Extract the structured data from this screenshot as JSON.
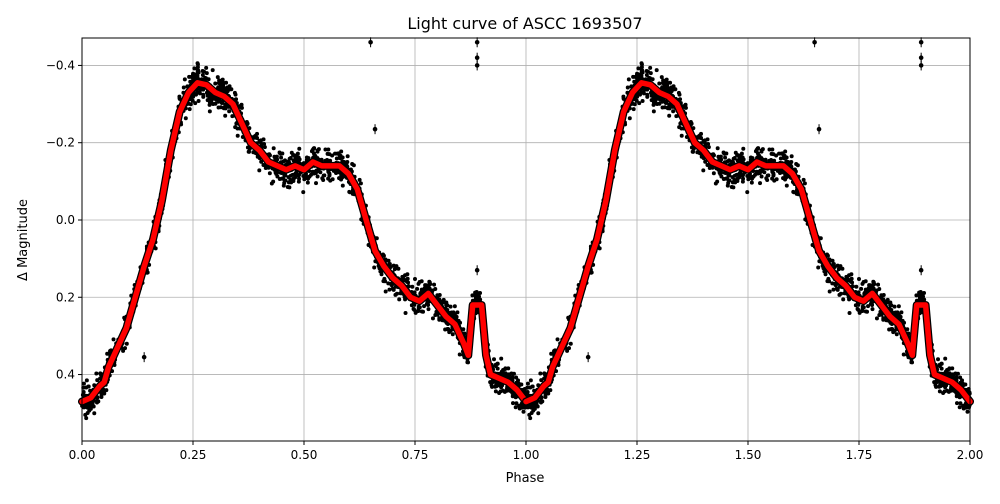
{
  "chart_data": {
    "type": "scatter",
    "title": "Light curve of ASCC 1693507",
    "xlabel": "Phase",
    "ylabel": "Δ Magnitude",
    "xlim": [
      0.0,
      2.0
    ],
    "ylim": [
      0.572,
      -0.471
    ],
    "y_inverted": true,
    "grid": true,
    "legend": null,
    "x_ticks": [
      "0.00",
      "0.25",
      "0.50",
      "0.75",
      "1.00",
      "1.25",
      "1.50",
      "1.75",
      "2.00"
    ],
    "x_tick_values": [
      0.0,
      0.25,
      0.5,
      0.75,
      1.0,
      1.25,
      1.5,
      1.75,
      2.0
    ],
    "y_ticks": [
      "−0.4",
      "−0.2",
      "0.0",
      "0.2",
      "0.4"
    ],
    "y_tick_values": [
      -0.4,
      -0.2,
      0.0,
      0.2,
      0.4
    ],
    "series": [
      {
        "name": "observations",
        "style": "scatter",
        "color": "#000000",
        "note": "dense black points with error bars scattered around the model curve, repeated for phase 0-1 and 1-2",
        "outliers": [
          {
            "phase": 0.65,
            "mag": -0.46
          },
          {
            "phase": 0.89,
            "mag": -0.46
          },
          {
            "phase": 0.89,
            "mag": -0.42
          },
          {
            "phase": 0.89,
            "mag": -0.4
          },
          {
            "phase": 0.66,
            "mag": -0.235
          },
          {
            "phase": 0.89,
            "mag": 0.13
          },
          {
            "phase": 0.14,
            "mag": 0.355
          },
          {
            "phase": 1.65,
            "mag": -0.46
          },
          {
            "phase": 1.89,
            "mag": -0.46
          },
          {
            "phase": 1.89,
            "mag": -0.42
          },
          {
            "phase": 1.89,
            "mag": -0.4
          },
          {
            "phase": 1.66,
            "mag": -0.235
          },
          {
            "phase": 1.89,
            "mag": 0.13
          },
          {
            "phase": 1.14,
            "mag": 0.355
          }
        ]
      },
      {
        "name": "binned model",
        "style": "line",
        "color": "#ff0000",
        "x": [
          0.0,
          0.02,
          0.04,
          0.05,
          0.06,
          0.08,
          0.1,
          0.12,
          0.14,
          0.16,
          0.18,
          0.2,
          0.22,
          0.24,
          0.26,
          0.28,
          0.3,
          0.32,
          0.34,
          0.36,
          0.38,
          0.4,
          0.42,
          0.44,
          0.46,
          0.48,
          0.5,
          0.52,
          0.54,
          0.56,
          0.58,
          0.6,
          0.62,
          0.64,
          0.66,
          0.68,
          0.7,
          0.72,
          0.74,
          0.76,
          0.78,
          0.8,
          0.82,
          0.84,
          0.86,
          0.87,
          0.88,
          0.89,
          0.9,
          0.91,
          0.92,
          0.94,
          0.96,
          0.98,
          1.0
        ],
        "y": [
          0.47,
          0.46,
          0.43,
          0.42,
          0.38,
          0.33,
          0.28,
          0.2,
          0.12,
          0.05,
          -0.05,
          -0.18,
          -0.28,
          -0.33,
          -0.355,
          -0.35,
          -0.33,
          -0.32,
          -0.3,
          -0.25,
          -0.2,
          -0.18,
          -0.15,
          -0.14,
          -0.13,
          -0.14,
          -0.13,
          -0.15,
          -0.14,
          -0.14,
          -0.14,
          -0.12,
          -0.08,
          0.0,
          0.08,
          0.12,
          0.15,
          0.17,
          0.2,
          0.21,
          0.19,
          0.22,
          0.25,
          0.27,
          0.32,
          0.35,
          0.22,
          0.22,
          0.22,
          0.35,
          0.4,
          0.41,
          0.42,
          0.44,
          0.47
        ]
      }
    ]
  }
}
